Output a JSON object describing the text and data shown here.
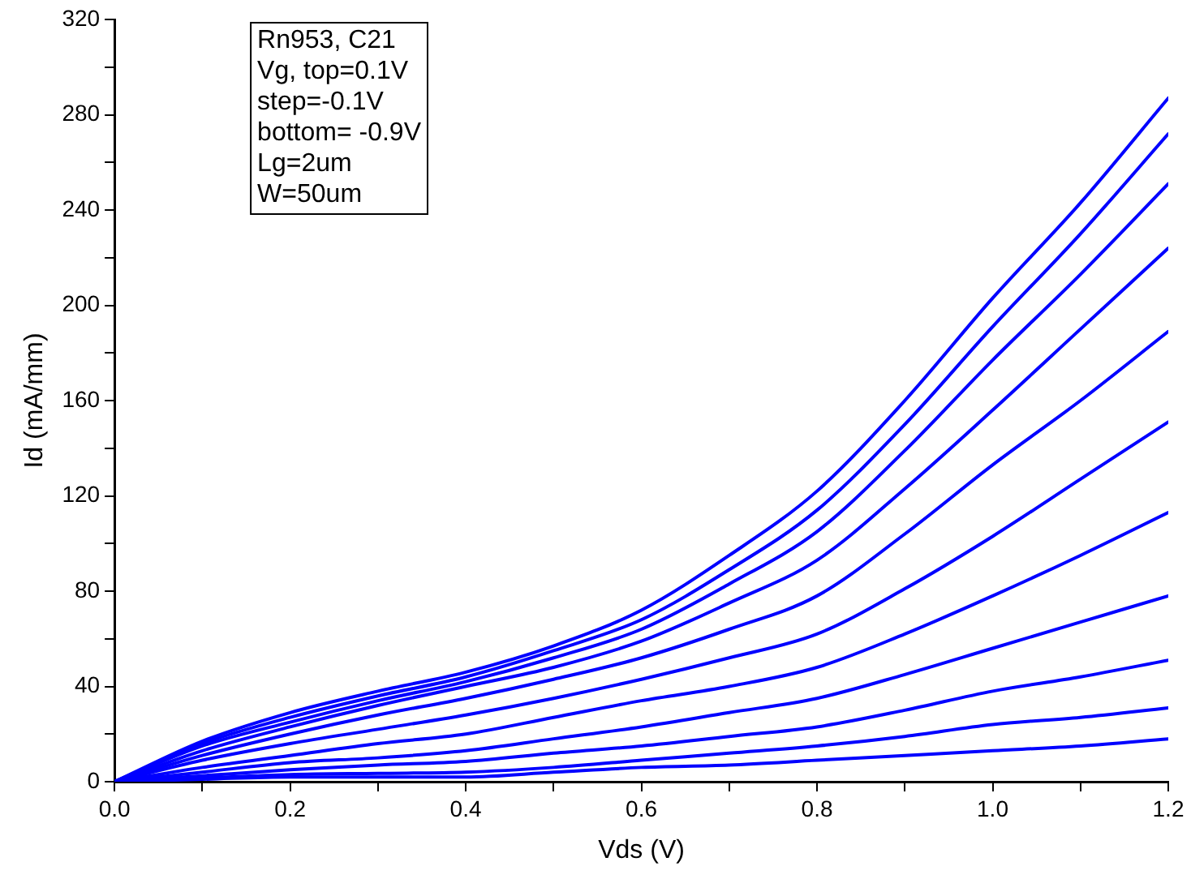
{
  "chart_data": {
    "type": "line",
    "xlabel": "Vds (V)",
    "ylabel": "Id (mA/mm)",
    "annotations": [
      "Rn953, C21\nVg, top=0.1V\nstep=-0.1V\nbottom= -0.9V\nLg=2um\nW=50um"
    ],
    "x": [
      0,
      0.1,
      0.2,
      0.3,
      0.4,
      0.5,
      0.6,
      0.7,
      0.8,
      0.9,
      1.0,
      1.1,
      1.2
    ],
    "xlim": [
      0,
      1.2
    ],
    "xticks": [
      {
        "value": 0,
        "label": "0.0"
      },
      {
        "value": 0.1,
        "label": null
      },
      {
        "value": 0.2,
        "label": "0.2"
      },
      {
        "value": 0.3,
        "label": null
      },
      {
        "value": 0.4,
        "label": "0.4"
      },
      {
        "value": 0.5,
        "label": null
      },
      {
        "value": 0.6,
        "label": "0.6"
      },
      {
        "value": 0.7,
        "label": null
      },
      {
        "value": 0.8,
        "label": "0.8"
      },
      {
        "value": 0.9,
        "label": null
      },
      {
        "value": 1.0,
        "label": "1.0"
      },
      {
        "value": 1.1,
        "label": null
      },
      {
        "value": 1.2,
        "label": "1.2"
      }
    ],
    "ylim": [
      0,
      320
    ],
    "yticks": [
      0,
      {
        "value": 20,
        "label": null
      },
      40,
      {
        "value": 60,
        "label": null
      },
      80,
      {
        "value": 100,
        "label": null
      },
      120,
      {
        "value": 140,
        "label": null
      },
      160,
      {
        "value": 180,
        "label": null
      },
      200,
      {
        "value": 220,
        "label": null
      },
      240,
      {
        "value": 260,
        "label": null
      },
      280,
      {
        "value": 300,
        "label": null
      },
      320
    ],
    "grid": false,
    "legend": false,
    "marker": "none",
    "line_style": "solid",
    "series": [
      {
        "color": "#0000ff",
        "values": [
          0,
          17,
          29,
          38,
          46,
          57,
          72,
          95,
          122,
          160,
          203,
          243,
          287
        ]
      },
      {
        "color": "#0000ff",
        "values": [
          0,
          16,
          27,
          36,
          44,
          55,
          68,
          89,
          114,
          150,
          191,
          230,
          272
        ]
      },
      {
        "color": "#0000ff",
        "values": [
          0,
          15,
          25,
          34,
          42,
          52,
          64,
          83,
          105,
          139,
          177,
          213,
          251
        ]
      },
      {
        "color": "#0000ff",
        "values": [
          0,
          13,
          23,
          32,
          40,
          48,
          59,
          75,
          93,
          123,
          156,
          190,
          224
        ]
      },
      {
        "color": "#0000ff",
        "values": [
          0,
          11,
          20,
          28,
          35,
          43,
          52,
          64,
          78,
          104,
          133,
          160,
          189
        ]
      },
      {
        "color": "#0000ff",
        "values": [
          0,
          9,
          16,
          22,
          28,
          35,
          43,
          52,
          62,
          81,
          103,
          127,
          151
        ]
      },
      {
        "color": "#0000ff",
        "values": [
          0,
          6,
          11,
          16,
          20,
          27,
          34,
          40,
          48,
          62,
          78,
          95,
          113
        ]
      },
      {
        "color": "#0000ff",
        "values": [
          0,
          4,
          8,
          10,
          13,
          18,
          23,
          29,
          35,
          45,
          56,
          67,
          78
        ]
      },
      {
        "color": "#0000ff",
        "values": [
          0,
          2.5,
          5,
          7,
          8.5,
          12,
          15,
          19,
          23,
          30,
          38,
          44,
          51
        ]
      },
      {
        "color": "#0000ff",
        "values": [
          0,
          1.5,
          3,
          3.5,
          4,
          6,
          9,
          12,
          15,
          19,
          24,
          27,
          31
        ]
      },
      {
        "color": "#0000ff",
        "values": [
          0,
          1,
          2,
          2,
          2,
          4,
          6,
          7,
          9,
          11,
          13,
          15,
          18
        ]
      }
    ]
  }
}
